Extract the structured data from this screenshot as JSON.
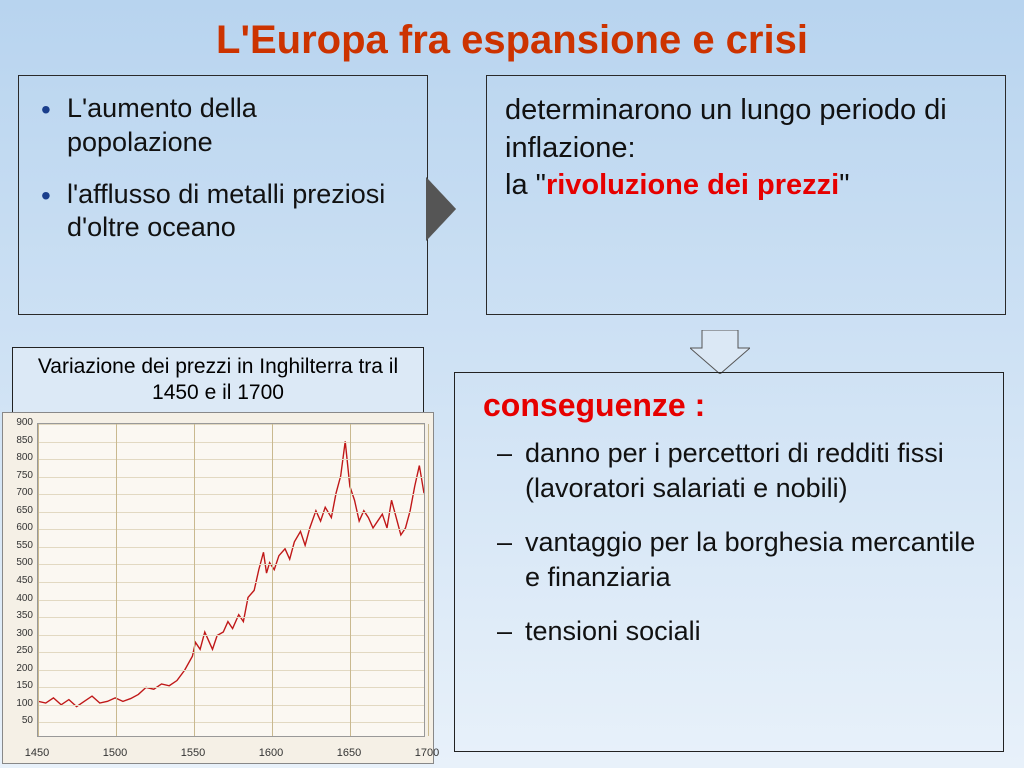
{
  "title": "L'Europa fra espansione e crisi",
  "left_box": {
    "items": [
      "L'aumento della popolazione",
      "l'afflusso di metalli preziosi d'oltre oceano"
    ]
  },
  "right_box": {
    "line1": "determinarono un lungo periodo di inflazione:",
    "line2_prefix": "la \"",
    "line2_highlight": "rivoluzione dei prezzi",
    "line2_suffix": "\""
  },
  "chart_caption": "Variazione dei prezzi in Inghilterra tra il 1450 e il 1700",
  "consequences": {
    "heading": "conseguenze :",
    "items": [
      "danno per i percettori di redditi fissi (lavoratori salariati e nobili)",
      "vantaggio per la borghesia mercantile e finanziaria",
      "tensioni sociali"
    ]
  },
  "chart": {
    "type": "line",
    "line_color": "#c01818",
    "line_width": 1.4,
    "background_color": "#fbf8f2",
    "outer_background": "#f5f0e6",
    "grid_color_v": "#c9b98f",
    "grid_color_h": "#e2d9c2",
    "xlim": [
      1450,
      1700
    ],
    "ylim": [
      0,
      900
    ],
    "ytick_step": 50,
    "xticks": [
      1450,
      1500,
      1550,
      1600,
      1650,
      1700
    ],
    "yticks": [
      50,
      100,
      150,
      200,
      250,
      300,
      350,
      400,
      450,
      500,
      550,
      600,
      650,
      700,
      750,
      800,
      850,
      900
    ],
    "data": [
      [
        1450,
        100
      ],
      [
        1455,
        95
      ],
      [
        1460,
        110
      ],
      [
        1465,
        90
      ],
      [
        1470,
        105
      ],
      [
        1475,
        85
      ],
      [
        1480,
        100
      ],
      [
        1485,
        115
      ],
      [
        1490,
        95
      ],
      [
        1495,
        100
      ],
      [
        1500,
        110
      ],
      [
        1505,
        100
      ],
      [
        1510,
        108
      ],
      [
        1515,
        120
      ],
      [
        1520,
        140
      ],
      [
        1525,
        135
      ],
      [
        1530,
        150
      ],
      [
        1535,
        145
      ],
      [
        1540,
        160
      ],
      [
        1545,
        190
      ],
      [
        1550,
        230
      ],
      [
        1552,
        270
      ],
      [
        1555,
        250
      ],
      [
        1558,
        300
      ],
      [
        1560,
        280
      ],
      [
        1563,
        250
      ],
      [
        1566,
        290
      ],
      [
        1570,
        300
      ],
      [
        1573,
        330
      ],
      [
        1576,
        310
      ],
      [
        1580,
        350
      ],
      [
        1583,
        330
      ],
      [
        1586,
        400
      ],
      [
        1590,
        420
      ],
      [
        1593,
        480
      ],
      [
        1596,
        530
      ],
      [
        1598,
        470
      ],
      [
        1600,
        500
      ],
      [
        1603,
        480
      ],
      [
        1606,
        520
      ],
      [
        1610,
        540
      ],
      [
        1613,
        510
      ],
      [
        1616,
        560
      ],
      [
        1620,
        590
      ],
      [
        1623,
        550
      ],
      [
        1626,
        600
      ],
      [
        1630,
        650
      ],
      [
        1633,
        620
      ],
      [
        1636,
        660
      ],
      [
        1640,
        630
      ],
      [
        1643,
        700
      ],
      [
        1646,
        750
      ],
      [
        1649,
        850
      ],
      [
        1652,
        720
      ],
      [
        1655,
        680
      ],
      [
        1658,
        620
      ],
      [
        1661,
        650
      ],
      [
        1664,
        630
      ],
      [
        1667,
        600
      ],
      [
        1670,
        620
      ],
      [
        1673,
        640
      ],
      [
        1676,
        600
      ],
      [
        1679,
        680
      ],
      [
        1682,
        630
      ],
      [
        1685,
        580
      ],
      [
        1688,
        600
      ],
      [
        1691,
        650
      ],
      [
        1694,
        720
      ],
      [
        1697,
        780
      ],
      [
        1700,
        700
      ]
    ]
  },
  "colors": {
    "title": "#cc3300",
    "bullet_marker": "#1a3e8c",
    "highlight": "#e60000",
    "border": "#2a2a2a"
  }
}
